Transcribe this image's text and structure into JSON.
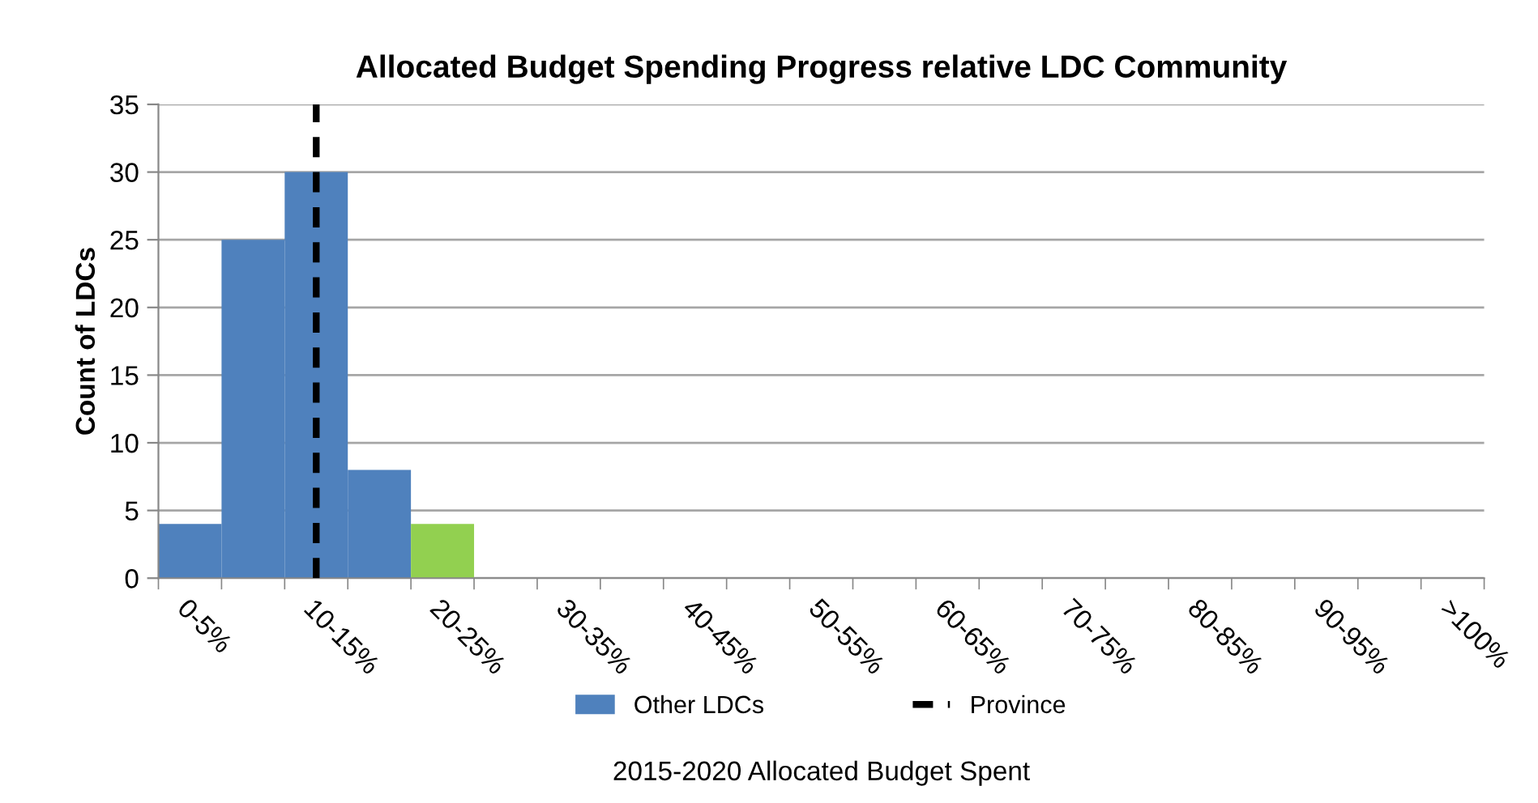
{
  "chart_data": {
    "type": "bar",
    "title": "Allocated Budget Spending Progress relative LDC Community",
    "xlabel": "2015-2020 Allocated Budget Spent",
    "ylabel": "Count of LDCs",
    "categories": [
      "0-5%",
      null,
      "10-15%",
      null,
      "20-25%",
      null,
      "30-35%",
      null,
      "40-45%",
      null,
      "50-55%",
      null,
      "60-65%",
      null,
      "70-75%",
      null,
      "80-85%",
      null,
      "90-95%",
      null,
      ">100%"
    ],
    "series": [
      {
        "name": "Other LDCs",
        "color": "#4f81bd",
        "values": [
          4,
          25,
          30,
          8,
          0,
          0,
          0,
          0,
          0,
          0,
          0,
          0,
          0,
          0,
          0,
          0,
          0,
          0,
          0,
          0,
          0
        ]
      },
      {
        "color": "#92d050",
        "values": [
          0,
          0,
          0,
          0,
          4,
          0,
          0,
          0,
          0,
          0,
          0,
          0,
          0,
          0,
          0,
          0,
          0,
          0,
          0,
          0,
          0
        ]
      }
    ],
    "ref_lines": [
      {
        "axis": "x",
        "value": "10-15%",
        "label": "Province",
        "color": "#000000",
        "line_style": "dashed"
      }
    ],
    "ylim": [
      0,
      35
    ],
    "yticks": [
      0,
      5,
      10,
      15,
      20,
      25,
      30,
      35
    ],
    "grid": "y",
    "legend": "bottom"
  }
}
